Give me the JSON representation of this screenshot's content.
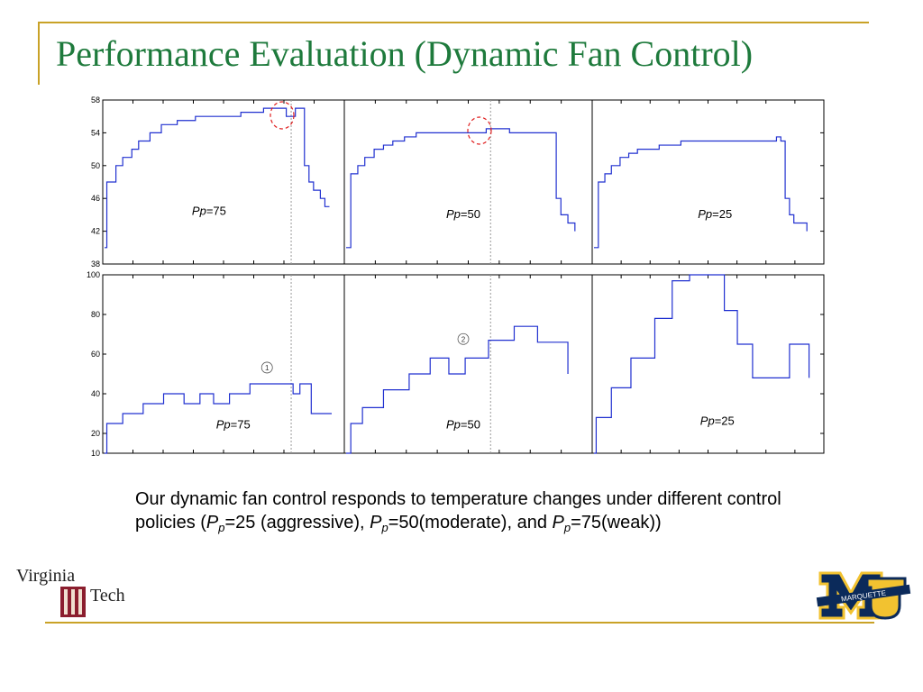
{
  "slide": {
    "title": "Performance Evaluation (Dynamic Fan Control)",
    "caption": {
      "t1": "Our dynamic fan control responds to temperature changes under different control policies (",
      "p1": "P",
      "s1": "p",
      "t2": "=25 (aggressive), ",
      "p2": "P",
      "s2": "p",
      "t3": "=50(moderate), and ",
      "p3": "P",
      "s3": "p",
      "t4": "=75(weak))"
    },
    "logos": {
      "left_line1": "Virginia",
      "left_line2": "Tech",
      "right_text": "MARQUETTE"
    }
  },
  "colors": {
    "title": "#1e7a3c",
    "rule": "#c9a227",
    "series": "#2030d0",
    "marker": "#e02020"
  },
  "chart_data": [
    {
      "type": "line",
      "panel": "temperature",
      "ylim": [
        38,
        58
      ],
      "y_ticks": [
        38,
        42,
        46,
        50,
        54,
        58
      ],
      "y_tick_labels": [
        "38",
        "42",
        "46",
        "50",
        "54",
        "58"
      ],
      "subplots": [
        {
          "label_prefix": "Pp",
          "label_value": "=75",
          "x": [
            0,
            0.01,
            0.03,
            0.05,
            0.08,
            0.12,
            0.15,
            0.2,
            0.25,
            0.32,
            0.4,
            0.5,
            0.6,
            0.7,
            0.75,
            0.8,
            0.84,
            0.86,
            0.88,
            0.9,
            0.92,
            0.95,
            0.97,
            0.99
          ],
          "y": [
            40,
            48,
            48,
            50,
            51,
            52,
            53,
            54,
            55,
            55.5,
            56,
            56,
            56.5,
            57,
            57,
            56,
            57,
            57,
            50,
            48,
            47,
            46,
            45,
            45
          ]
        },
        {
          "label_prefix": "Pp",
          "label_value": "=50",
          "x": [
            0,
            0.02,
            0.05,
            0.08,
            0.12,
            0.16,
            0.2,
            0.25,
            0.3,
            0.4,
            0.5,
            0.6,
            0.7,
            0.8,
            0.85,
            0.88,
            0.9,
            0.92,
            0.95,
            0.98
          ],
          "y": [
            40,
            49,
            50,
            51,
            52,
            52.5,
            53,
            53.5,
            54,
            54,
            54,
            54.5,
            54,
            54,
            54,
            54,
            46,
            44,
            43,
            42
          ]
        },
        {
          "label_prefix": "Pp",
          "label_value": "=25",
          "x": [
            0,
            0.02,
            0.05,
            0.08,
            0.12,
            0.16,
            0.2,
            0.25,
            0.3,
            0.4,
            0.5,
            0.6,
            0.7,
            0.8,
            0.84,
            0.86,
            0.88,
            0.9,
            0.92,
            0.95,
            0.98
          ],
          "y": [
            40,
            48,
            49,
            50,
            51,
            51.5,
            52,
            52,
            52.5,
            53,
            53,
            53,
            53,
            53,
            53.5,
            53,
            46,
            44,
            43,
            43,
            42
          ]
        }
      ]
    },
    {
      "type": "line",
      "panel": "fan speed",
      "ylim": [
        10,
        100
      ],
      "y_ticks": [
        10,
        20,
        40,
        60,
        80,
        100
      ],
      "y_tick_labels": [
        "10",
        "20",
        "40",
        "60",
        "80",
        "100"
      ],
      "subplots": [
        {
          "label_prefix": "Pp",
          "label_value": "=75",
          "marker_label": "1",
          "x": [
            0,
            0.01,
            0.08,
            0.17,
            0.26,
            0.35,
            0.42,
            0.48,
            0.55,
            0.64,
            0.75,
            0.83,
            0.86,
            0.91,
            0.96,
            1.0
          ],
          "y": [
            10,
            25,
            30,
            35,
            40,
            35,
            40,
            35,
            40,
            45,
            45,
            40,
            45,
            30,
            30,
            30
          ]
        },
        {
          "label_prefix": "Pp",
          "label_value": "=50",
          "marker_label": "2",
          "x": [
            0,
            0.02,
            0.07,
            0.16,
            0.27,
            0.36,
            0.44,
            0.51,
            0.61,
            0.72,
            0.82,
            0.92,
            0.95
          ],
          "y": [
            10,
            25,
            33,
            42,
            50,
            58,
            50,
            58,
            67,
            74,
            66,
            66,
            50
          ]
        },
        {
          "label_prefix": "Pp",
          "label_value": "=25",
          "x": [
            0,
            0.01,
            0.08,
            0.17,
            0.28,
            0.36,
            0.44,
            0.6,
            0.66,
            0.73,
            0.8,
            0.9,
            0.96,
            0.99
          ],
          "y": [
            10,
            28,
            43,
            58,
            78,
            97,
            100,
            82,
            65,
            48,
            48,
            65,
            65,
            48
          ]
        }
      ]
    }
  ]
}
